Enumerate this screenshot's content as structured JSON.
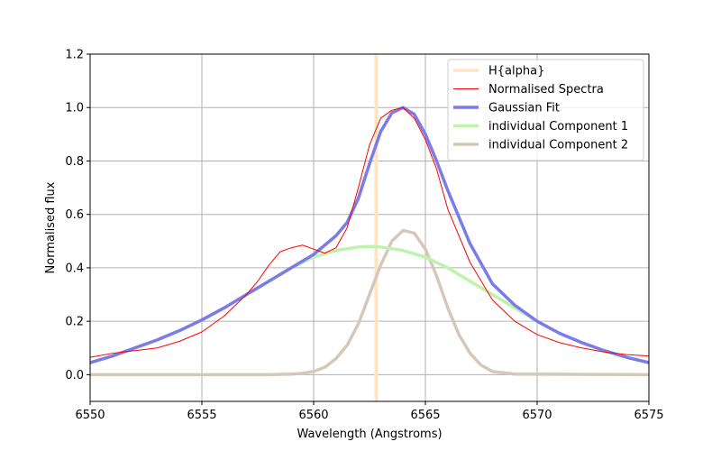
{
  "chart_data": {
    "type": "line",
    "xlabel": "Wavelength (Angstroms)",
    "ylabel": "Normalised flux",
    "xlim": [
      6550,
      6575
    ],
    "ylim": [
      -0.1,
      1.2
    ],
    "xticks": [
      "6550",
      "6555",
      "6560",
      "6565",
      "6570",
      "6575"
    ],
    "yticks": [
      "0.0",
      "0.2",
      "0.4",
      "0.6",
      "0.8",
      "1.0",
      "1.2"
    ],
    "grid": true,
    "legend_position": "top-right",
    "vline": {
      "name": "H{alpha}",
      "x": 6562.8,
      "color": "#ffe4c4"
    },
    "series": [
      {
        "name": "Normalised Spectra",
        "color": "#ff0000",
        "x": [
          6550,
          6551,
          6552,
          6553,
          6554,
          6555,
          6556,
          6557,
          6557.5,
          6558,
          6558.5,
          6559,
          6559.5,
          6560,
          6560.5,
          6561,
          6561.5,
          6562,
          6562.5,
          6563,
          6563.5,
          6564,
          6564.5,
          6565,
          6565.5,
          6566,
          6567,
          6568,
          6569,
          6570,
          6571,
          6572,
          6573,
          6574,
          6575
        ],
        "values": [
          0.065,
          0.08,
          0.09,
          0.1,
          0.125,
          0.16,
          0.22,
          0.3,
          0.35,
          0.41,
          0.46,
          0.475,
          0.485,
          0.47,
          0.455,
          0.475,
          0.55,
          0.7,
          0.86,
          0.96,
          0.99,
          1.0,
          0.96,
          0.88,
          0.77,
          0.62,
          0.42,
          0.28,
          0.2,
          0.15,
          0.12,
          0.1,
          0.085,
          0.075,
          0.07
        ]
      },
      {
        "name": "Gaussian Fit",
        "color": "#7b7bea",
        "x": [
          6550,
          6551,
          6552,
          6553,
          6554,
          6555,
          6556,
          6557,
          6558,
          6559,
          6560,
          6561,
          6561.5,
          6562,
          6562.5,
          6563,
          6563.5,
          6564,
          6564.5,
          6565,
          6565.5,
          6566,
          6567,
          6568,
          6569,
          6570,
          6571,
          6572,
          6573,
          6574,
          6575
        ],
        "values": [
          0.045,
          0.07,
          0.1,
          0.13,
          0.165,
          0.205,
          0.25,
          0.3,
          0.35,
          0.4,
          0.45,
          0.52,
          0.57,
          0.66,
          0.79,
          0.91,
          0.98,
          1.0,
          0.975,
          0.9,
          0.8,
          0.69,
          0.49,
          0.34,
          0.26,
          0.2,
          0.155,
          0.12,
          0.09,
          0.065,
          0.045
        ]
      },
      {
        "name": "individual Component 1",
        "color": "#bff2ac",
        "x": [
          6550,
          6551,
          6552,
          6553,
          6554,
          6555,
          6556,
          6557,
          6558,
          6559,
          6560,
          6561,
          6562,
          6562.6,
          6563,
          6564,
          6565,
          6566,
          6567,
          6568,
          6569,
          6570,
          6571,
          6572,
          6573,
          6574,
          6575
        ],
        "values": [
          0.045,
          0.07,
          0.1,
          0.13,
          0.165,
          0.205,
          0.25,
          0.3,
          0.35,
          0.4,
          0.44,
          0.465,
          0.478,
          0.48,
          0.478,
          0.465,
          0.44,
          0.4,
          0.35,
          0.3,
          0.25,
          0.2,
          0.155,
          0.12,
          0.09,
          0.065,
          0.045
        ]
      },
      {
        "name": "individual Component 2",
        "color": "#d6c8b8",
        "x": [
          6550,
          6558,
          6559,
          6559.5,
          6560,
          6560.5,
          6561,
          6561.5,
          6562,
          6562.5,
          6563,
          6563.5,
          6564,
          6564.5,
          6565,
          6565.5,
          6566,
          6566.5,
          6567,
          6567.5,
          6568,
          6569,
          6575
        ],
        "values": [
          0.0,
          0.0,
          0.002,
          0.005,
          0.012,
          0.028,
          0.06,
          0.11,
          0.19,
          0.3,
          0.41,
          0.5,
          0.54,
          0.53,
          0.47,
          0.37,
          0.25,
          0.15,
          0.08,
          0.035,
          0.012,
          0.002,
          0.0
        ]
      }
    ]
  }
}
